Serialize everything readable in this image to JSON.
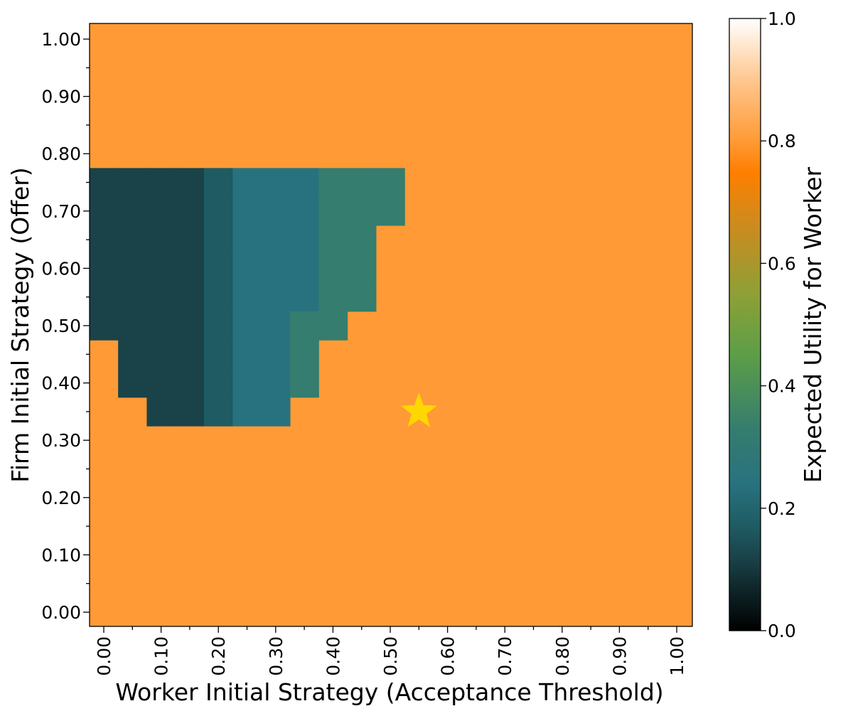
{
  "chart_data": {
    "type": "heatmap",
    "title": "",
    "xlabel": "Worker Initial Strategy (Acceptance Threshold)",
    "ylabel": "Firm Initial Strategy (Offer)",
    "x_values": [
      0.0,
      0.05,
      0.1,
      0.15,
      0.2,
      0.25,
      0.3,
      0.35,
      0.4,
      0.45,
      0.5,
      0.55,
      0.6,
      0.65,
      0.7,
      0.75,
      0.8,
      0.85,
      0.9,
      0.95,
      1.0
    ],
    "y_values": [
      0.0,
      0.05,
      0.1,
      0.15,
      0.2,
      0.25,
      0.3,
      0.35,
      0.4,
      0.45,
      0.5,
      0.55,
      0.6,
      0.65,
      0.7,
      0.75,
      0.8,
      0.85,
      0.9,
      0.95,
      1.0
    ],
    "x_tick_labels": [
      "0.00",
      "0.10",
      "0.20",
      "0.30",
      "0.40",
      "0.50",
      "0.60",
      "0.70",
      "0.80",
      "0.90",
      "1.00"
    ],
    "y_tick_labels": [
      "0.00",
      "0.10",
      "0.20",
      "0.30",
      "0.40",
      "0.50",
      "0.60",
      "0.70",
      "0.80",
      "0.90",
      "1.00"
    ],
    "default_value": 0.8,
    "cells": [
      {
        "y": 0.75,
        "x": [
          0.0,
          0.05,
          0.1,
          0.15
        ],
        "value": 0.12
      },
      {
        "y": 0.75,
        "x": [
          0.2
        ],
        "value": 0.17
      },
      {
        "y": 0.75,
        "x": [
          0.25,
          0.3,
          0.35
        ],
        "value": 0.24
      },
      {
        "y": 0.75,
        "x": [
          0.4,
          0.45,
          0.5
        ],
        "value": 0.33
      },
      {
        "y": 0.7,
        "x": [
          0.0,
          0.05,
          0.1,
          0.15
        ],
        "value": 0.12
      },
      {
        "y": 0.7,
        "x": [
          0.2
        ],
        "value": 0.17
      },
      {
        "y": 0.7,
        "x": [
          0.25,
          0.3,
          0.35
        ],
        "value": 0.24
      },
      {
        "y": 0.7,
        "x": [
          0.4,
          0.45,
          0.5
        ],
        "value": 0.33
      },
      {
        "y": 0.65,
        "x": [
          0.0,
          0.05,
          0.1,
          0.15
        ],
        "value": 0.12
      },
      {
        "y": 0.65,
        "x": [
          0.2
        ],
        "value": 0.17
      },
      {
        "y": 0.65,
        "x": [
          0.25,
          0.3,
          0.35
        ],
        "value": 0.24
      },
      {
        "y": 0.65,
        "x": [
          0.4,
          0.45
        ],
        "value": 0.33
      },
      {
        "y": 0.6,
        "x": [
          0.0,
          0.05,
          0.1,
          0.15
        ],
        "value": 0.12
      },
      {
        "y": 0.6,
        "x": [
          0.2
        ],
        "value": 0.17
      },
      {
        "y": 0.6,
        "x": [
          0.25,
          0.3,
          0.35
        ],
        "value": 0.24
      },
      {
        "y": 0.6,
        "x": [
          0.4,
          0.45
        ],
        "value": 0.33
      },
      {
        "y": 0.55,
        "x": [
          0.0,
          0.05,
          0.1,
          0.15
        ],
        "value": 0.12
      },
      {
        "y": 0.55,
        "x": [
          0.2
        ],
        "value": 0.17
      },
      {
        "y": 0.55,
        "x": [
          0.25,
          0.3,
          0.35
        ],
        "value": 0.24
      },
      {
        "y": 0.55,
        "x": [
          0.4,
          0.45
        ],
        "value": 0.33
      },
      {
        "y": 0.5,
        "x": [
          0.0,
          0.05,
          0.1,
          0.15
        ],
        "value": 0.12
      },
      {
        "y": 0.5,
        "x": [
          0.2
        ],
        "value": 0.17
      },
      {
        "y": 0.5,
        "x": [
          0.25,
          0.3
        ],
        "value": 0.24
      },
      {
        "y": 0.5,
        "x": [
          0.35,
          0.4
        ],
        "value": 0.33
      },
      {
        "y": 0.45,
        "x": [
          0.05,
          0.1,
          0.15
        ],
        "value": 0.12
      },
      {
        "y": 0.45,
        "x": [
          0.2
        ],
        "value": 0.17
      },
      {
        "y": 0.45,
        "x": [
          0.25,
          0.3
        ],
        "value": 0.24
      },
      {
        "y": 0.45,
        "x": [
          0.35
        ],
        "value": 0.33
      },
      {
        "y": 0.4,
        "x": [
          0.05,
          0.1,
          0.15
        ],
        "value": 0.12
      },
      {
        "y": 0.4,
        "x": [
          0.2
        ],
        "value": 0.17
      },
      {
        "y": 0.4,
        "x": [
          0.25,
          0.3
        ],
        "value": 0.24
      },
      {
        "y": 0.4,
        "x": [
          0.35
        ],
        "value": 0.33
      },
      {
        "y": 0.35,
        "x": [
          0.1,
          0.15
        ],
        "value": 0.12
      },
      {
        "y": 0.35,
        "x": [
          0.2
        ],
        "value": 0.17
      },
      {
        "y": 0.35,
        "x": [
          0.25,
          0.3
        ],
        "value": 0.24
      }
    ],
    "marker": {
      "shape": "star",
      "x": 0.55,
      "y": 0.35,
      "color": "#FFD700"
    },
    "colorbar": {
      "label": "Expected Utility for Worker",
      "range": [
        0.0,
        1.0
      ],
      "tick_labels": [
        "0.0",
        "0.2",
        "0.4",
        "0.6",
        "0.8",
        "1.0"
      ],
      "tick_values": [
        0.0,
        0.2,
        0.4,
        0.6,
        0.8,
        1.0
      ],
      "colormap": [
        {
          "v": 0.0,
          "color": "#000000"
        },
        {
          "v": 0.12,
          "color": "#1A4349"
        },
        {
          "v": 0.17,
          "color": "#1E5B62"
        },
        {
          "v": 0.24,
          "color": "#28727F"
        },
        {
          "v": 0.33,
          "color": "#357D6E"
        },
        {
          "v": 0.45,
          "color": "#5C9E48"
        },
        {
          "v": 0.55,
          "color": "#8EA036"
        },
        {
          "v": 0.65,
          "color": "#C58D22"
        },
        {
          "v": 0.75,
          "color": "#FF7F00"
        },
        {
          "v": 0.8,
          "color": "#FF9A36"
        },
        {
          "v": 0.9,
          "color": "#FFC78F"
        },
        {
          "v": 1.0,
          "color": "#FFFFFF"
        }
      ]
    },
    "grid": false,
    "legend": "none"
  }
}
